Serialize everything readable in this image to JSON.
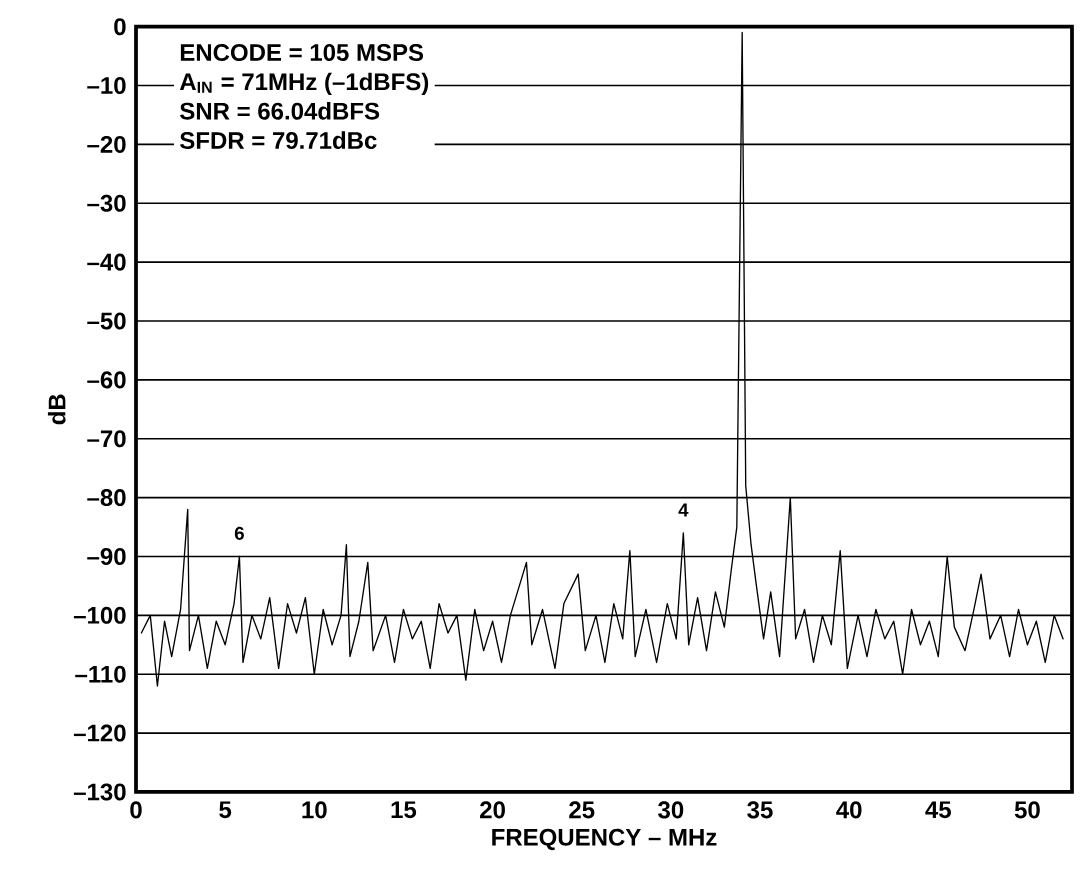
{
  "chart_data": {
    "type": "line",
    "xlabel": "FREQUENCY – MHz",
    "ylabel": "dB",
    "annotations": [
      "ENCODE = 105 MSPS",
      "A$_{IN}$ = 71MHz (–1dBFS)",
      "SNR = 66.04dBFS",
      "SFDR = 79.71dBc",
      {
        "text": "6",
        "x": 5.8,
        "y": -90
      },
      {
        "text": "4",
        "x": 30.7,
        "y": -86
      }
    ],
    "xlim": [
      0,
      52.5
    ],
    "xticks": [
      0,
      5,
      10,
      15,
      20,
      25,
      30,
      35,
      40,
      45,
      50
    ],
    "ylim": [
      -130,
      0
    ],
    "yticks": [
      {
        "value": 0,
        "label": "0"
      },
      {
        "value": -10,
        "label": "–10"
      },
      {
        "value": -20,
        "label": "–20"
      },
      {
        "value": -30,
        "label": "–30"
      },
      {
        "value": -40,
        "label": "–40"
      },
      {
        "value": -50,
        "label": "–50"
      },
      {
        "value": -60,
        "label": "–60"
      },
      {
        "value": -70,
        "label": "–70"
      },
      {
        "value": -80,
        "label": "–80"
      },
      {
        "value": -90,
        "label": "–90"
      },
      {
        "value": -100,
        "label": "–100"
      },
      {
        "value": -110,
        "label": "–110"
      },
      {
        "value": -120,
        "label": "–120"
      },
      {
        "value": -130,
        "label": "–130"
      }
    ],
    "grid": "y",
    "marker": "none",
    "line_style": "solid",
    "series": [
      {
        "color": "#000000",
        "x": [
          0.3,
          0.8,
          1.2,
          1.6,
          2.0,
          2.5,
          2.9,
          3.0,
          3.5,
          4.0,
          4.5,
          5.0,
          5.5,
          5.8,
          6.0,
          6.5,
          7.0,
          7.5,
          8.0,
          8.5,
          9.0,
          9.5,
          10.0,
          10.5,
          11.0,
          11.5,
          11.8,
          12.0,
          12.5,
          13.0,
          13.3,
          14.0,
          14.5,
          15.0,
          15.5,
          16.0,
          16.5,
          17.0,
          17.5,
          18.0,
          18.5,
          19.0,
          19.5,
          20.0,
          20.5,
          21.0,
          21.9,
          22.2,
          22.8,
          23.5,
          24.0,
          24.8,
          25.2,
          25.8,
          26.3,
          26.8,
          27.3,
          27.7,
          28.0,
          28.6,
          29.2,
          29.8,
          30.3,
          30.7,
          31.0,
          31.5,
          32.0,
          32.5,
          33.0,
          33.4,
          33.7,
          34.0,
          34.2,
          34.5,
          34.8,
          35.2,
          35.6,
          36.1,
          36.7,
          37.0,
          37.5,
          38.0,
          38.5,
          39.0,
          39.5,
          39.9,
          40.5,
          41.0,
          41.5,
          42.0,
          42.5,
          43.0,
          43.5,
          44.0,
          44.5,
          45.0,
          45.5,
          45.9,
          46.5,
          47.0,
          47.4,
          47.9,
          48.5,
          49.0,
          49.5,
          50.0,
          50.5,
          51.0,
          51.5,
          52.0
        ],
        "values": [
          -103,
          -100,
          -112,
          -101,
          -107,
          -99,
          -82,
          -106,
          -100,
          -109,
          -101,
          -105,
          -98,
          -90,
          -108,
          -100,
          -104,
          -97,
          -109,
          -98,
          -103,
          -97,
          -110,
          -99,
          -105,
          -100,
          -88,
          -107,
          -101,
          -91,
          -106,
          -100,
          -108,
          -99,
          -104,
          -101,
          -109,
          -98,
          -103,
          -100,
          -111,
          -99,
          -106,
          -101,
          -108,
          -100,
          -91,
          -105,
          -99,
          -109,
          -98,
          -93,
          -106,
          -100,
          -108,
          -98,
          -104,
          -89,
          -107,
          -99,
          -108,
          -98,
          -104,
          -86,
          -105,
          -97,
          -106,
          -96,
          -102,
          -92,
          -85,
          -1,
          -78,
          -88,
          -95,
          -104,
          -96,
          -107,
          -80,
          -104,
          -99,
          -108,
          -100,
          -105,
          -89,
          -109,
          -100,
          -107,
          -99,
          -104,
          -101,
          -110,
          -99,
          -105,
          -101,
          -107,
          -90,
          -102,
          -106,
          -99,
          -93,
          -104,
          -100,
          -107,
          -99,
          -105,
          -101,
          -108,
          -100,
          -104
        ]
      }
    ]
  }
}
